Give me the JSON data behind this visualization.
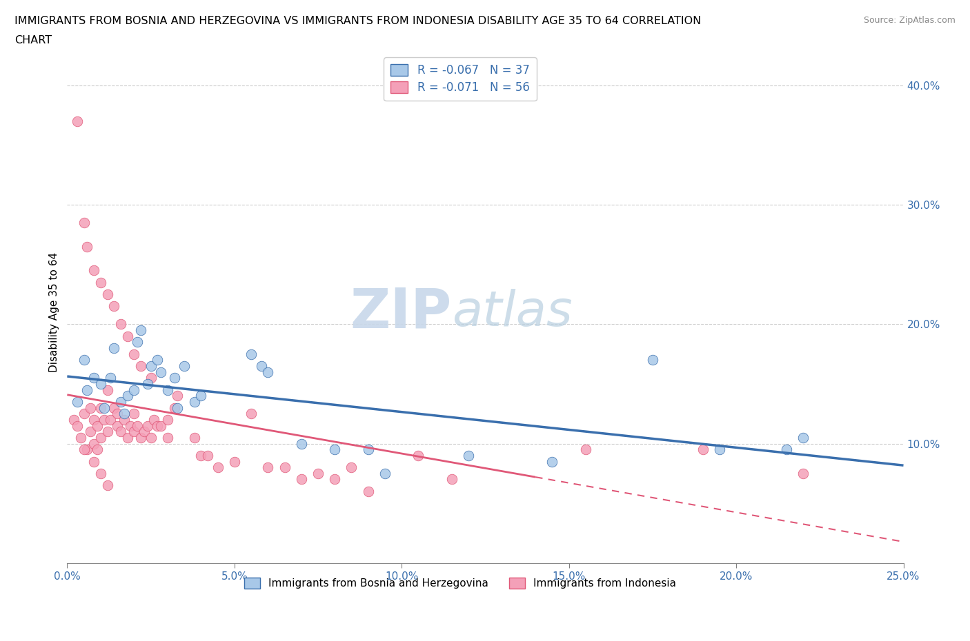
{
  "title_line1": "IMMIGRANTS FROM BOSNIA AND HERZEGOVINA VS IMMIGRANTS FROM INDONESIA DISABILITY AGE 35 TO 64 CORRELATION",
  "title_line2": "CHART",
  "source_text": "Source: ZipAtlas.com",
  "ylabel": "Disability Age 35 to 64",
  "legend_label_1": "Immigrants from Bosnia and Herzegovina",
  "legend_label_2": "Immigrants from Indonesia",
  "r1": -0.067,
  "n1": 37,
  "r2": -0.071,
  "n2": 56,
  "color1": "#a8c8e8",
  "color2": "#f4a0b8",
  "line_color1": "#3a6fad",
  "line_color2": "#e05878",
  "xlim": [
    0.0,
    0.25
  ],
  "ylim": [
    0.0,
    0.42
  ],
  "xticks": [
    0.0,
    0.05,
    0.1,
    0.15,
    0.2,
    0.25
  ],
  "xtick_labels": [
    "0.0%",
    "5.0%",
    "10.0%",
    "15.0%",
    "20.0%",
    "25.0%"
  ],
  "yticks": [
    0.0,
    0.1,
    0.2,
    0.3,
    0.4
  ],
  "ytick_labels": [
    "",
    "10.0%",
    "20.0%",
    "30.0%",
    "40.0%"
  ],
  "bosnia_x": [
    0.003,
    0.005,
    0.006,
    0.008,
    0.01,
    0.011,
    0.013,
    0.014,
    0.016,
    0.017,
    0.018,
    0.02,
    0.021,
    0.022,
    0.024,
    0.025,
    0.027,
    0.028,
    0.03,
    0.032,
    0.033,
    0.035,
    0.038,
    0.04,
    0.055,
    0.058,
    0.06,
    0.07,
    0.08,
    0.09,
    0.095,
    0.12,
    0.145,
    0.175,
    0.195,
    0.215,
    0.22
  ],
  "bosnia_y": [
    0.135,
    0.17,
    0.145,
    0.155,
    0.15,
    0.13,
    0.155,
    0.18,
    0.135,
    0.125,
    0.14,
    0.145,
    0.185,
    0.195,
    0.15,
    0.165,
    0.17,
    0.16,
    0.145,
    0.155,
    0.13,
    0.165,
    0.135,
    0.14,
    0.175,
    0.165,
    0.16,
    0.1,
    0.095,
    0.095,
    0.075,
    0.09,
    0.085,
    0.17,
    0.095,
    0.095,
    0.105
  ],
  "indonesia_x": [
    0.002,
    0.003,
    0.004,
    0.005,
    0.006,
    0.007,
    0.007,
    0.008,
    0.008,
    0.009,
    0.009,
    0.01,
    0.01,
    0.011,
    0.012,
    0.012,
    0.013,
    0.014,
    0.015,
    0.015,
    0.016,
    0.017,
    0.018,
    0.019,
    0.02,
    0.02,
    0.021,
    0.022,
    0.023,
    0.024,
    0.025,
    0.026,
    0.027,
    0.028,
    0.03,
    0.03,
    0.032,
    0.033,
    0.038,
    0.04,
    0.042,
    0.045,
    0.05,
    0.055,
    0.06,
    0.065,
    0.07,
    0.075,
    0.08,
    0.085,
    0.09,
    0.105,
    0.115,
    0.155,
    0.19,
    0.22
  ],
  "indonesia_y": [
    0.12,
    0.115,
    0.105,
    0.125,
    0.095,
    0.11,
    0.13,
    0.1,
    0.12,
    0.095,
    0.115,
    0.105,
    0.13,
    0.12,
    0.11,
    0.145,
    0.12,
    0.13,
    0.115,
    0.125,
    0.11,
    0.12,
    0.105,
    0.115,
    0.11,
    0.125,
    0.115,
    0.105,
    0.11,
    0.115,
    0.105,
    0.12,
    0.115,
    0.115,
    0.105,
    0.12,
    0.13,
    0.14,
    0.105,
    0.09,
    0.09,
    0.08,
    0.085,
    0.125,
    0.08,
    0.08,
    0.07,
    0.075,
    0.07,
    0.08,
    0.06,
    0.09,
    0.07,
    0.095,
    0.095,
    0.075
  ],
  "indonesia_outliers_x": [
    0.003,
    0.005,
    0.006,
    0.008,
    0.01,
    0.012,
    0.014,
    0.016,
    0.018,
    0.02,
    0.022,
    0.025,
    0.005,
    0.008,
    0.01,
    0.012
  ],
  "indonesia_outliers_y": [
    0.37,
    0.285,
    0.265,
    0.245,
    0.235,
    0.225,
    0.215,
    0.2,
    0.19,
    0.175,
    0.165,
    0.155,
    0.095,
    0.085,
    0.075,
    0.065
  ]
}
